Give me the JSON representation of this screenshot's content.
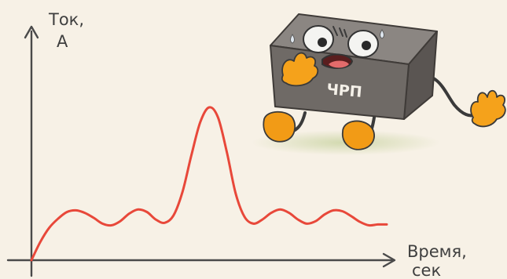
{
  "chart_data": {
    "type": "line",
    "y_axis_label_line1": "Ток,",
    "y_axis_label_line2": "А",
    "x_axis_label_line1": "Время,",
    "x_axis_label_line2": "сек",
    "grid": false,
    "legend": "none",
    "xlim": [
      0,
      10
    ],
    "ylim": [
      0,
      10
    ],
    "line_color": "#e8483a",
    "series": [
      {
        "x": [
          0.0,
          0.25,
          0.5,
          0.75,
          1.0,
          1.25,
          1.5,
          1.75,
          2.0,
          2.25,
          2.5,
          2.75,
          3.0,
          3.25,
          3.5,
          3.75,
          4.0,
          4.25,
          4.5,
          4.75,
          5.0,
          5.25,
          5.5,
          5.75,
          6.0,
          6.25,
          6.5,
          6.75,
          7.0,
          7.25,
          7.5,
          7.75,
          8.0,
          8.25,
          8.5,
          8.75,
          9.0,
          9.25,
          9.5,
          9.75,
          10.0
        ],
        "y": [
          0.0,
          1.1,
          1.95,
          2.5,
          2.9,
          3.0,
          2.85,
          2.55,
          2.2,
          2.1,
          2.35,
          2.8,
          3.05,
          2.9,
          2.45,
          2.25,
          2.7,
          4.1,
          6.3,
          8.3,
          9.2,
          8.6,
          6.5,
          4.0,
          2.6,
          2.2,
          2.45,
          2.85,
          3.05,
          2.85,
          2.45,
          2.2,
          2.35,
          2.75,
          3.0,
          2.95,
          2.65,
          2.3,
          2.1,
          2.15,
          2.15
        ]
      }
    ]
  },
  "mascot": {
    "label": "ЧРП",
    "body_color": "#6f6a66",
    "hand_color": "#f5a21b",
    "foot_color": "#f29b16",
    "tongue_color": "#e36b6b"
  },
  "axis_color": "#4a4a4a"
}
